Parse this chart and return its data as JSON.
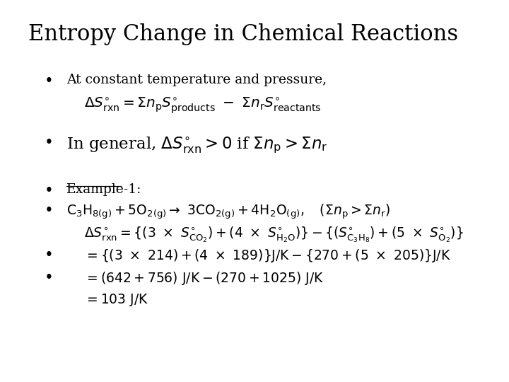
{
  "title": "Entropy Change in Chemical Reactions",
  "background_color": "#ffffff",
  "text_color": "#000000",
  "title_fontsize": 22,
  "body_fontsize": 13.5,
  "font_family": "DejaVu Serif"
}
